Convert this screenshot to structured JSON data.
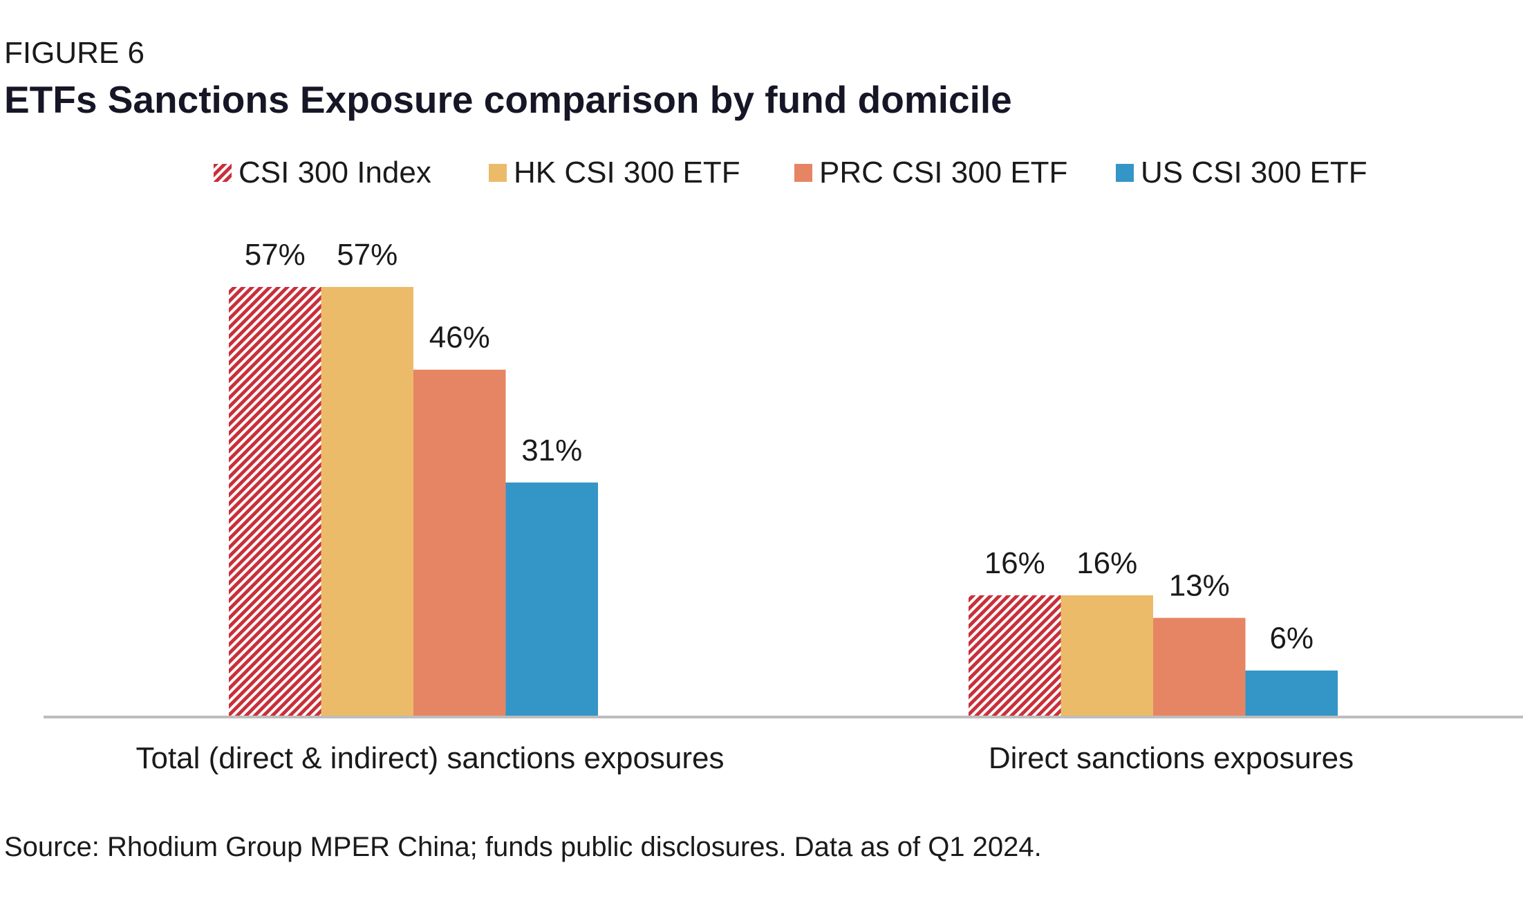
{
  "figure_label": "FIGURE 6",
  "title": "ETFs Sanctions Exposure comparison by fund domicile",
  "source": "Source: Rhodium Group MPER China; funds public disclosures. Data as of Q1 2024.",
  "colors": {
    "csi_index": "#c8303a",
    "hk_etf": "#ebbb6a",
    "prc_etf": "#e68564",
    "us_etf": "#3495c7",
    "axis": "#bdbdbd"
  },
  "chart_data": {
    "type": "bar",
    "categories": [
      "Total (direct & indirect) sanctions exposures",
      "Direct sanctions exposures"
    ],
    "series": [
      {
        "name": "CSI 300 Index",
        "values": [
          57,
          16
        ],
        "labels": [
          "57%",
          "16%"
        ],
        "color": "#c8303a",
        "pattern": "hatch"
      },
      {
        "name": "HK CSI 300 ETF",
        "values": [
          57,
          16
        ],
        "labels": [
          "57%",
          "16%"
        ],
        "color": "#ebbb6a"
      },
      {
        "name": "PRC CSI 300 ETF",
        "values": [
          46,
          13
        ],
        "labels": [
          "46%",
          "13%"
        ],
        "color": "#e68564"
      },
      {
        "name": "US CSI 300 ETF",
        "values": [
          31,
          6
        ],
        "labels": [
          "31%",
          "6%"
        ],
        "color": "#3495c7"
      }
    ],
    "ylim": [
      0,
      60
    ],
    "grid": false,
    "legend_position": "top"
  }
}
